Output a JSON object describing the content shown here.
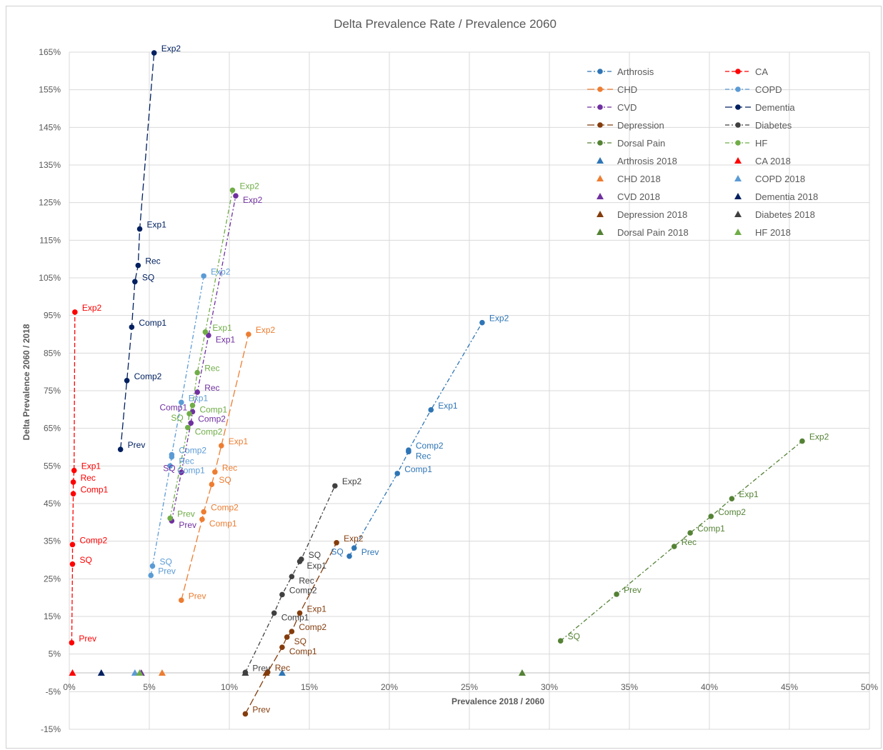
{
  "chart_data": {
    "type": "scatter",
    "title": "Delta Prevalence Rate / Prevalence 2060",
    "xlabel": "Prevalence 2018 / 2060",
    "ylabel": "Delta Prevalence 2060 / 2018",
    "xlim": [
      0,
      50
    ],
    "ylim": [
      -15,
      165
    ],
    "x_ticks": [
      0,
      5,
      10,
      15,
      20,
      25,
      30,
      35,
      40,
      45,
      50
    ],
    "y_ticks": [
      -15,
      -5,
      5,
      15,
      25,
      35,
      45,
      55,
      65,
      75,
      85,
      95,
      105,
      115,
      125,
      135,
      145,
      155,
      165
    ],
    "x_tick_labels": [
      "0%",
      "5%",
      "10%",
      "15%",
      "20%",
      "25%",
      "30%",
      "35%",
      "40%",
      "45%",
      "50%"
    ],
    "y_tick_labels": [
      "-15%",
      "-5%",
      "5%",
      "15%",
      "25%",
      "35%",
      "45%",
      "55%",
      "65%",
      "75%",
      "85%",
      "95%",
      "105%",
      "115%",
      "125%",
      "135%",
      "145%",
      "155%",
      "165%"
    ],
    "grid": true,
    "legend_position": "top-right",
    "series": [
      {
        "name": "Arthrosis",
        "color": "#2e75b6",
        "dash": "6,3,2,3",
        "points": [
          {
            "label": "Prev",
            "x": 17.8,
            "y": 33.2
          },
          {
            "label": "SQ",
            "x": 17.5,
            "y": 31.0
          },
          {
            "label": "Comp1",
            "x": 20.5,
            "y": 53.0
          },
          {
            "label": "Rec",
            "x": 21.2,
            "y": 58.8
          },
          {
            "label": "Comp2",
            "x": 21.2,
            "y": 59.2
          },
          {
            "label": "Exp1",
            "x": 22.6,
            "y": 69.9
          },
          {
            "label": "Exp2",
            "x": 25.8,
            "y": 93.1
          }
        ]
      },
      {
        "name": "CA",
        "color": "#ff0000",
        "dash": "6,3",
        "points": [
          {
            "label": "Prev",
            "x": 0.15,
            "y": 8.0
          },
          {
            "label": "SQ",
            "x": 0.2,
            "y": 28.9
          },
          {
            "label": "Comp2",
            "x": 0.2,
            "y": 34.1
          },
          {
            "label": "Comp1",
            "x": 0.25,
            "y": 47.6
          },
          {
            "label": "Rec",
            "x": 0.25,
            "y": 50.7
          },
          {
            "label": "Exp1",
            "x": 0.3,
            "y": 53.8
          },
          {
            "label": "Exp2",
            "x": 0.35,
            "y": 95.9
          }
        ]
      },
      {
        "name": "CHD",
        "color": "#ed7d31",
        "dash": "10,4",
        "points": [
          {
            "label": "Prev",
            "x": 7.0,
            "y": 19.3
          },
          {
            "label": "Comp1",
            "x": 8.3,
            "y": 40.8
          },
          {
            "label": "Comp2",
            "x": 8.4,
            "y": 42.8
          },
          {
            "label": "SQ",
            "x": 8.9,
            "y": 50.1
          },
          {
            "label": "Rec",
            "x": 9.1,
            "y": 53.4
          },
          {
            "label": "Exp1",
            "x": 9.5,
            "y": 60.4
          },
          {
            "label": "Exp2",
            "x": 11.2,
            "y": 90.0
          }
        ]
      },
      {
        "name": "COPD",
        "color": "#5b9bd5",
        "dash": "6,3,2,3",
        "points": [
          {
            "label": "Prev",
            "x": 5.1,
            "y": 25.9
          },
          {
            "label": "SQ",
            "x": 5.2,
            "y": 28.4
          },
          {
            "label": "Comp1",
            "x": 6.3,
            "y": 55.0
          },
          {
            "label": "Rec",
            "x": 6.4,
            "y": 57.4
          },
          {
            "label": "Comp2",
            "x": 6.4,
            "y": 58.0
          },
          {
            "label": "Exp1",
            "x": 7.0,
            "y": 71.9
          },
          {
            "label": "Exp2",
            "x": 8.4,
            "y": 105.5
          }
        ]
      },
      {
        "name": "CVD",
        "color": "#7030a0",
        "dash": "6,3,2,3",
        "points": [
          {
            "label": "Prev",
            "x": 6.4,
            "y": 40.4
          },
          {
            "label": "SQ",
            "x": 7.0,
            "y": 53.3
          },
          {
            "label": "Comp2",
            "x": 7.6,
            "y": 66.4
          },
          {
            "label": "Comp1",
            "x": 7.7,
            "y": 69.4
          },
          {
            "label": "Rec",
            "x": 8.0,
            "y": 74.6
          },
          {
            "label": "Exp1",
            "x": 8.7,
            "y": 89.7
          },
          {
            "label": "Exp2",
            "x": 10.4,
            "y": 126.8
          }
        ]
      },
      {
        "name": "Dementia",
        "color": "#002060",
        "dash": "10,4",
        "points": [
          {
            "label": "Prev",
            "x": 3.2,
            "y": 59.4
          },
          {
            "label": "Comp2",
            "x": 3.6,
            "y": 77.7
          },
          {
            "label": "Comp1",
            "x": 3.9,
            "y": 91.9
          },
          {
            "label": "SQ",
            "x": 4.1,
            "y": 104.0
          },
          {
            "label": "Rec",
            "x": 4.3,
            "y": 108.3
          },
          {
            "label": "Exp1",
            "x": 4.4,
            "y": 118.0
          },
          {
            "label": "Exp2",
            "x": 5.3,
            "y": 164.8
          }
        ]
      },
      {
        "name": "Depression",
        "color": "#843c0c",
        "dash": "10,4",
        "points": [
          {
            "label": "Prev",
            "x": 11.0,
            "y": -10.9
          },
          {
            "label": "Rec",
            "x": 12.4,
            "y": 0.2
          },
          {
            "label": "Comp1",
            "x": 13.3,
            "y": 6.8
          },
          {
            "label": "SQ",
            "x": 13.6,
            "y": 9.5
          },
          {
            "label": "Comp2",
            "x": 13.9,
            "y": 11.0
          },
          {
            "label": "Exp1",
            "x": 14.4,
            "y": 15.9
          },
          {
            "label": "Exp2",
            "x": 16.7,
            "y": 34.6
          }
        ]
      },
      {
        "name": "Diabetes",
        "color": "#404040",
        "dash": "6,3,2,3",
        "points": [
          {
            "label": "Prev",
            "x": 11.0,
            "y": 0.1
          },
          {
            "label": "Comp1",
            "x": 12.8,
            "y": 15.9
          },
          {
            "label": "Comp2",
            "x": 13.3,
            "y": 20.8
          },
          {
            "label": "Rec",
            "x": 13.9,
            "y": 25.6
          },
          {
            "label": "Exp1",
            "x": 14.4,
            "y": 29.6
          },
          {
            "label": "SQ",
            "x": 14.5,
            "y": 30.2
          },
          {
            "label": "Exp2",
            "x": 16.6,
            "y": 49.7
          }
        ]
      },
      {
        "name": "Dorsal Pain",
        "color": "#548235",
        "dash": "6,3,2,3",
        "points": [
          {
            "label": "SQ",
            "x": 30.7,
            "y": 8.5
          },
          {
            "label": "Prev",
            "x": 34.2,
            "y": 20.9
          },
          {
            "label": "Rec",
            "x": 37.8,
            "y": 33.6
          },
          {
            "label": "Comp1",
            "x": 38.8,
            "y": 37.2
          },
          {
            "label": "Comp2",
            "x": 40.1,
            "y": 41.6
          },
          {
            "label": "Exp1",
            "x": 41.4,
            "y": 46.3
          },
          {
            "label": "Exp2",
            "x": 45.8,
            "y": 61.6
          }
        ]
      },
      {
        "name": "HF",
        "color": "#70ad47",
        "dash": "6,3,2,3",
        "points": [
          {
            "label": "Prev",
            "x": 6.3,
            "y": 41.1
          },
          {
            "label": "Comp2",
            "x": 7.4,
            "y": 65.2
          },
          {
            "label": "SQ",
            "x": 7.5,
            "y": 68.9
          },
          {
            "label": "Comp1",
            "x": 7.7,
            "y": 71.1
          },
          {
            "label": "Rec",
            "x": 8.0,
            "y": 79.8
          },
          {
            "label": "Exp1",
            "x": 8.5,
            "y": 90.6
          },
          {
            "label": "Exp2",
            "x": 10.2,
            "y": 128.3
          }
        ]
      }
    ],
    "baseline_series": [
      {
        "name": "Arthrosis 2018",
        "color": "#2e75b6",
        "x": 13.3,
        "y": 0
      },
      {
        "name": "CA 2018",
        "color": "#ff0000",
        "x": 0.2,
        "y": 0
      },
      {
        "name": "CHD 2018",
        "color": "#ed7d31",
        "x": 5.8,
        "y": 0
      },
      {
        "name": "COPD 2018",
        "color": "#5b9bd5",
        "x": 4.1,
        "y": 0
      },
      {
        "name": "CVD 2018",
        "color": "#7030a0",
        "x": 4.5,
        "y": 0
      },
      {
        "name": "Dementia 2018",
        "color": "#002060",
        "x": 2.0,
        "y": 0
      },
      {
        "name": "Depression 2018",
        "color": "#843c0c",
        "x": 12.3,
        "y": 0
      },
      {
        "name": "Diabetes 2018",
        "color": "#404040",
        "x": 11.0,
        "y": 0
      },
      {
        "name": "Dorsal Pain 2018",
        "color": "#548235",
        "x": 28.3,
        "y": 0
      },
      {
        "name": "HF 2018",
        "color": "#70ad47",
        "x": 4.4,
        "y": 0
      }
    ]
  }
}
